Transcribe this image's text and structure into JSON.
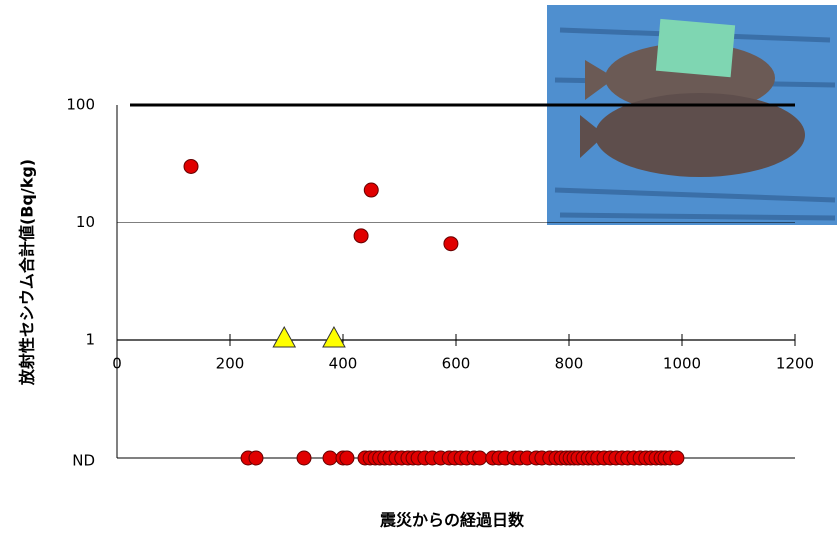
{
  "chart_data": {
    "type": "scatter",
    "y_label": "放射性セシウム合計値(Bq/kg)",
    "x_label": "震災からの経過日数",
    "xlim": [
      0,
      1200
    ],
    "xticks": [
      0,
      200,
      400,
      600,
      800,
      1000,
      1200
    ],
    "ylim": [
      1,
      100
    ],
    "yticks": [
      1,
      10,
      100
    ],
    "log_y": true,
    "grid": true,
    "series": [
      {
        "marker": "circle",
        "color": "#e00000",
        "x": [
          131,
          432,
          450,
          591
        ],
        "values": [
          30,
          7.7,
          18.9,
          6.6
        ]
      },
      {
        "marker": "triangle",
        "color": "#ffff00",
        "x": [
          296,
          384
        ],
        "values": [
          1,
          1
        ]
      }
    ],
    "nd": {
      "label": "ND",
      "color": "#e00000",
      "x": [
        232,
        246,
        331,
        377,
        400,
        407,
        439,
        448,
        457,
        465,
        474,
        483,
        494,
        504,
        515,
        524,
        533,
        545,
        558,
        573,
        588,
        598,
        609,
        619,
        632,
        642,
        665,
        676,
        687,
        703,
        713,
        726,
        742,
        752,
        766,
        777,
        786,
        795,
        802,
        809,
        816,
        825,
        834,
        842,
        851,
        862,
        873,
        883,
        894,
        904,
        915,
        926,
        936,
        945,
        954,
        963,
        970,
        979,
        991
      ]
    }
  }
}
